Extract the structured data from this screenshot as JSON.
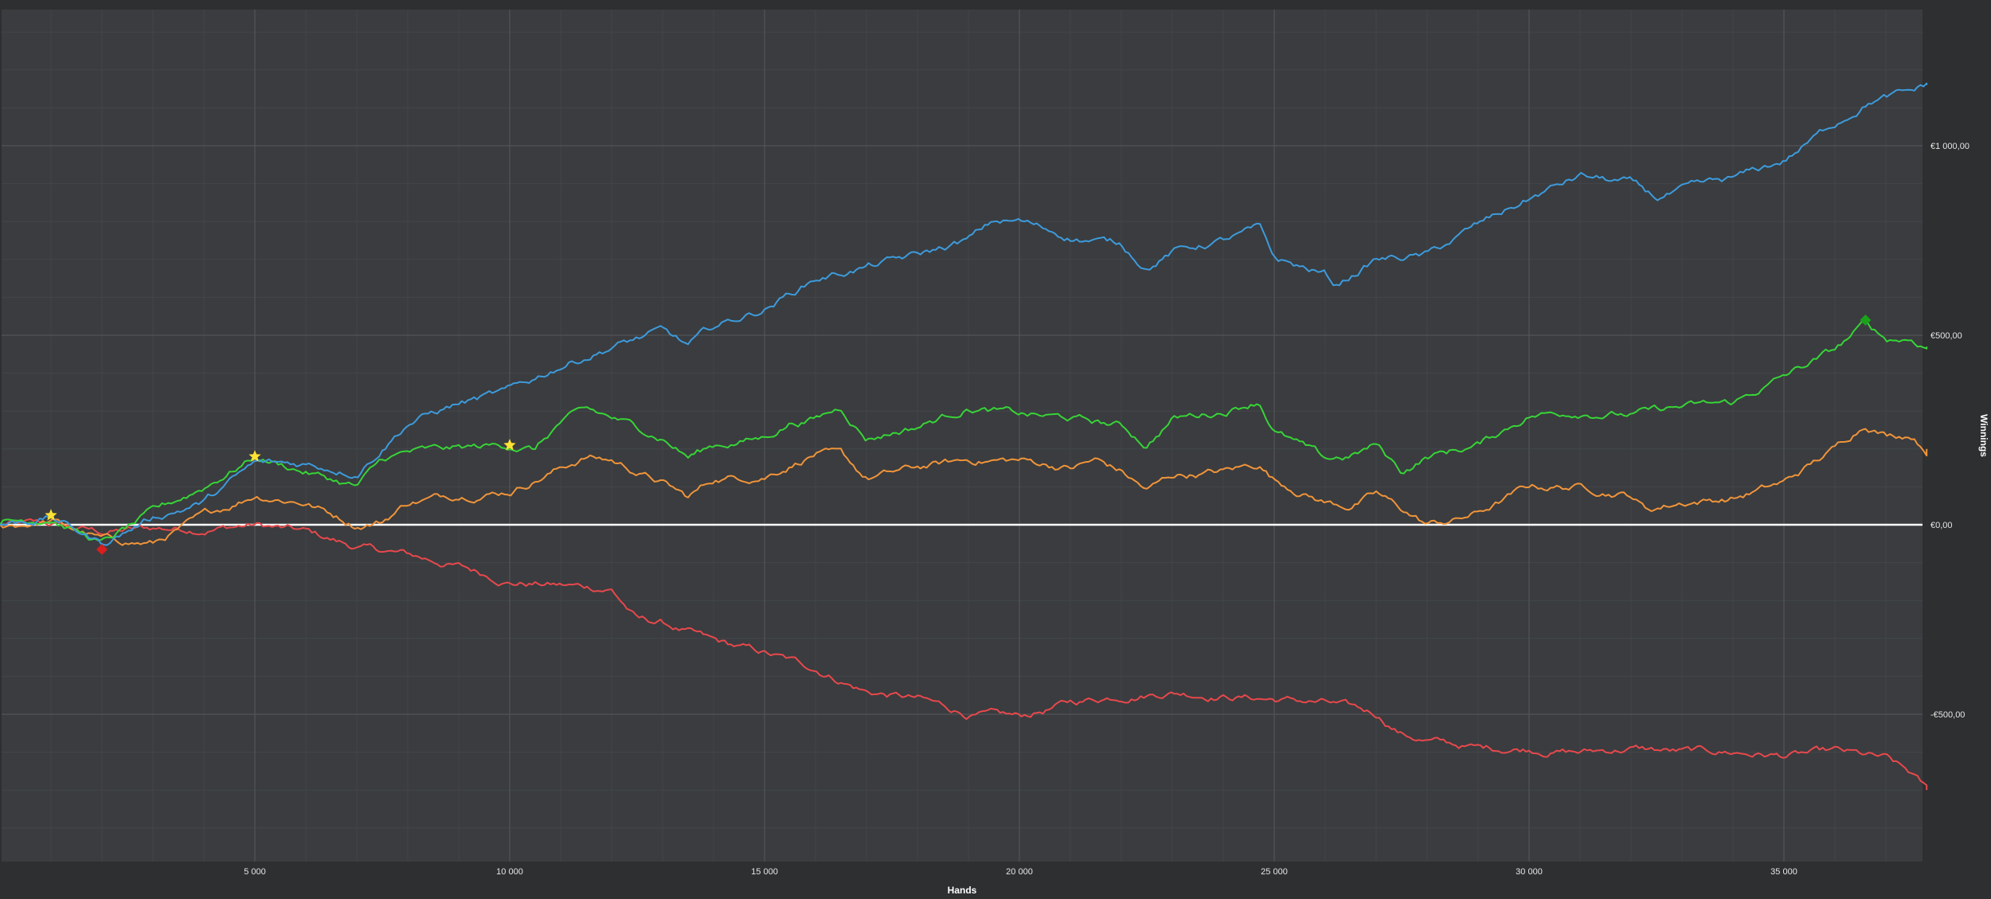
{
  "chart_data": {
    "type": "line",
    "xlabel": "Hands",
    "ylabel": "Winnings",
    "xlim": [
      0,
      37800
    ],
    "ylim": [
      -880,
      1380
    ],
    "x_ticks": [
      5000,
      10000,
      15000,
      20000,
      25000,
      30000,
      35000
    ],
    "x_tick_labels": [
      "5 000",
      "10 000",
      "15 000",
      "20 000",
      "25 000",
      "30 000",
      "35 000"
    ],
    "y_ticks": [
      1000,
      500,
      0,
      -500
    ],
    "y_tick_labels": [
      "€1 000,00",
      "€500,00",
      "€0,00",
      "-€500,00"
    ],
    "grid": true,
    "legend": "none",
    "colors": {
      "background": "#3a3c3f",
      "outer": "#2d2f31",
      "grid_major": "#55585b",
      "grid_minor": "#43464a",
      "zero_line": "#ffffff"
    },
    "series": [
      {
        "color": "#3d9bdc",
        "x": [
          0,
          1000,
          2000,
          3000,
          4000,
          5000,
          6000,
          7000,
          8000,
          9000,
          10000,
          11000,
          12000,
          13000,
          13500,
          14000,
          15000,
          16000,
          17000,
          18000,
          19000,
          19500,
          20000,
          21000,
          22000,
          22500,
          23000,
          24000,
          24700,
          25000,
          26000,
          26200,
          27000,
          28000,
          28500,
          29000,
          30000,
          31000,
          32000,
          32500,
          33000,
          34000,
          35000,
          36000,
          36700,
          37500,
          37800
        ],
        "y": [
          0,
          20,
          -50,
          20,
          60,
          160,
          160,
          140,
          270,
          320,
          350,
          420,
          470,
          510,
          470,
          520,
          570,
          650,
          680,
          710,
          750,
          800,
          800,
          760,
          740,
          680,
          720,
          750,
          780,
          700,
          660,
          630,
          700,
          710,
          750,
          790,
          860,
          920,
          900,
          860,
          880,
          910,
          960,
          1060,
          1120,
          1140,
          1160
        ]
      },
      {
        "color": "#37d437",
        "x": [
          0,
          1000,
          2000,
          3000,
          4000,
          5000,
          6000,
          7000,
          7500,
          8000,
          9000,
          10000,
          10500,
          11000,
          11500,
          12000,
          13000,
          13500,
          14000,
          15000,
          15500,
          16000,
          16500,
          17000,
          18000,
          19000,
          20000,
          21000,
          22000,
          22500,
          23000,
          24000,
          24700,
          25000,
          26000,
          26500,
          27000,
          27500,
          28000,
          29000,
          30000,
          31000,
          32000,
          33000,
          34000,
          35000,
          36000,
          36600,
          37000,
          37500,
          37800
        ],
        "y": [
          0,
          20,
          -50,
          30,
          100,
          180,
          140,
          100,
          170,
          190,
          200,
          210,
          200,
          270,
          300,
          280,
          230,
          180,
          210,
          230,
          270,
          280,
          310,
          230,
          260,
          310,
          290,
          280,
          260,
          210,
          280,
          300,
          330,
          250,
          170,
          180,
          210,
          140,
          180,
          210,
          290,
          300,
          290,
          310,
          320,
          390,
          460,
          530,
          490,
          490,
          470
        ]
      },
      {
        "color": "#f0943a",
        "x": [
          0,
          1000,
          2000,
          3000,
          4000,
          5000,
          6000,
          7000,
          7500,
          8000,
          9000,
          10000,
          11000,
          11500,
          12000,
          13000,
          13500,
          14000,
          15000,
          16000,
          16500,
          17000,
          18000,
          19000,
          20000,
          21000,
          21500,
          22000,
          22500,
          23000,
          24000,
          24700,
          25000,
          26000,
          26500,
          27000,
          27500,
          28000,
          28500,
          29000,
          30000,
          31000,
          32000,
          32300,
          33000,
          34000,
          35000,
          36000,
          36600,
          37000,
          37500,
          37800
        ],
        "y": [
          0,
          10,
          -40,
          -50,
          20,
          80,
          60,
          0,
          10,
          60,
          80,
          90,
          150,
          180,
          170,
          110,
          70,
          120,
          130,
          190,
          180,
          120,
          150,
          170,
          170,
          150,
          170,
          140,
          90,
          130,
          140,
          160,
          120,
          60,
          50,
          80,
          40,
          0,
          10,
          30,
          100,
          100,
          80,
          40,
          60,
          70,
          110,
          200,
          270,
          240,
          240,
          200
        ]
      },
      {
        "color": "#e8484c",
        "x": [
          0,
          1000,
          2000,
          3000,
          4000,
          5000,
          6000,
          7000,
          8000,
          9000,
          10000,
          11000,
          12000,
          12500,
          13000,
          14000,
          15000,
          16000,
          17000,
          18000,
          19000,
          20000,
          21000,
          22000,
          23000,
          24000,
          25000,
          26000,
          27000,
          27500,
          28000,
          29000,
          30000,
          31000,
          32000,
          33000,
          34000,
          35000,
          36000,
          37000,
          37500,
          37800
        ],
        "y": [
          0,
          0,
          -20,
          -10,
          -10,
          0,
          -20,
          -60,
          -80,
          -110,
          -150,
          -160,
          -170,
          -250,
          -260,
          -310,
          -340,
          -380,
          -440,
          -460,
          -500,
          -510,
          -470,
          -450,
          -440,
          -450,
          -460,
          -470,
          -500,
          -550,
          -570,
          -590,
          -590,
          -600,
          -590,
          -600,
          -600,
          -610,
          -600,
          -620,
          -660,
          -700
        ]
      }
    ],
    "markers": [
      {
        "shape": "star",
        "color": "#ffe234",
        "x": 1000,
        "y": 25
      },
      {
        "shape": "star",
        "color": "#ffe234",
        "x": 5000,
        "y": 180
      },
      {
        "shape": "star",
        "color": "#ffe234",
        "x": 10000,
        "y": 210
      },
      {
        "shape": "diamond",
        "color": "#d81e1e",
        "x": 2000,
        "y": -65
      },
      {
        "shape": "diamond",
        "color": "#1aa31a",
        "x": 36600,
        "y": 540
      }
    ]
  }
}
